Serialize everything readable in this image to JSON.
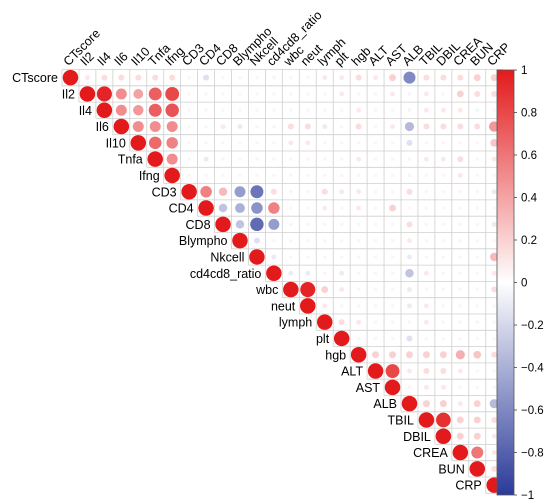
{
  "chart_data": {
    "type": "heatmap",
    "shape": "upper-triangle-circles",
    "variables": [
      "CTscore",
      "Il2",
      "Il4",
      "Il6",
      "Il10",
      "Tnfa",
      "Ifng",
      "CD3",
      "CD4",
      "CD8",
      "Blympho",
      "Nkcell",
      "cd4cd8_ratio",
      "wbc",
      "neut",
      "lymph",
      "plt",
      "hgb",
      "ALT",
      "AST",
      "ALB",
      "TBIL",
      "DBIL",
      "CREA",
      "BUN",
      "CRP"
    ],
    "correlations": {
      "CTscore": {
        "Il2": 0.1,
        "Il4": 0.15,
        "Il6": 0.15,
        "Il10": 0.15,
        "Tnfa": 0.15,
        "Ifng": 0.15,
        "CD3": 0.05,
        "CD4": -0.15,
        "CD8": 0.05,
        "Blympho": 0.05,
        "Nkcell": 0.05,
        "cd4cd8_ratio": -0.05,
        "wbc": 0.05,
        "neut": 0.05,
        "lymph": 0.1,
        "plt": 0.1,
        "hgb": 0.15,
        "ALT": 0.1,
        "AST": 0.2,
        "ALB": -0.6,
        "TBIL": 0.15,
        "DBIL": 0.15,
        "CREA": 0.15,
        "BUN": 0.2,
        "CRP": 0.2
      },
      "Il2": {
        "Il4": 0.95,
        "Il6": 0.5,
        "Il10": 0.4,
        "Tnfa": 0.7,
        "Ifng": 0.8,
        "CD3": 0.05,
        "CD4": 0.05,
        "CD8": 0.05,
        "Blympho": 0.05,
        "Nkcell": 0.05,
        "cd4cd8_ratio": 0.05,
        "wbc": 0.05,
        "neut": 0.05,
        "lymph": 0.05,
        "plt": 0.1,
        "hgb": 0.05,
        "ALT": 0.05,
        "AST": 0.1,
        "ALB": -0.05,
        "TBIL": 0.1,
        "DBIL": 0.05,
        "CREA": 0.2,
        "BUN": 0.15,
        "CRP": 0.15
      },
      "Il4": {
        "Il6": 0.5,
        "Il10": 0.45,
        "Tnfa": 0.7,
        "Ifng": 0.75,
        "CD3": 0.05,
        "CD4": 0.05,
        "CD8": 0.05,
        "Blympho": 0.05,
        "Nkcell": 0.05,
        "cd4cd8_ratio": 0.05,
        "wbc": 0.05,
        "neut": 0.05,
        "lymph": 0.05,
        "plt": 0.05,
        "hgb": 0.1,
        "ALT": 0.05,
        "AST": 0.05,
        "ALB": -0.05,
        "TBIL": 0.1,
        "DBIL": 0.1,
        "CREA": 0.1,
        "BUN": -0.05,
        "CRP": 0.05
      },
      "Il6": {
        "Il10": 0.5,
        "Tnfa": 0.5,
        "Ifng": 0.5,
        "CD3": 0.05,
        "CD4": 0.05,
        "CD8": 0.1,
        "Blympho": -0.1,
        "Nkcell": 0.05,
        "cd4cd8_ratio": -0.05,
        "wbc": 0.15,
        "neut": 0.15,
        "lymph": -0.1,
        "plt": 0.05,
        "hgb": 0.15,
        "ALT": 0.05,
        "AST": 0.1,
        "ALB": -0.35,
        "TBIL": 0.15,
        "DBIL": 0.15,
        "CREA": 0.15,
        "BUN": 0.15,
        "CRP": 0.45
      },
      "Il10": {
        "Tnfa": 0.65,
        "Ifng": 0.55,
        "CD3": 0.05,
        "CD4": 0.05,
        "CD8": 0.05,
        "Blympho": 0.05,
        "Nkcell": 0.05,
        "cd4cd8_ratio": 0.05,
        "wbc": 0.1,
        "neut": 0.1,
        "lymph": 0.05,
        "plt": 0.05,
        "hgb": 0.05,
        "ALT": 0.05,
        "AST": 0.05,
        "ALB": -0.15,
        "TBIL": 0.05,
        "DBIL": 0.05,
        "CREA": 0.05,
        "BUN": 0.05,
        "CRP": 0.25
      },
      "Tnfa": {
        "Ifng": 0.5,
        "CD3": 0.05,
        "CD4": -0.1,
        "CD8": 0.05,
        "Blympho": 0.05,
        "Nkcell": 0.05,
        "cd4cd8_ratio": 0.05,
        "wbc": 0.05,
        "neut": 0.05,
        "lymph": 0.05,
        "plt": 0.05,
        "hgb": 0.1,
        "ALT": 0.05,
        "AST": 0.05,
        "ALB": -0.05,
        "TBIL": 0.1,
        "DBIL": 0.1,
        "CREA": 0.15,
        "BUN": 0.05,
        "CRP": 0.1
      },
      "Ifng": {
        "CD3": 0.05,
        "CD4": 0.05,
        "CD8": 0.05,
        "Blympho": 0.05,
        "Nkcell": 0.05,
        "cd4cd8_ratio": 0.05,
        "wbc": 0.05,
        "neut": 0.05,
        "lymph": 0.05,
        "plt": 0.05,
        "hgb": 0.05,
        "ALT": 0.05,
        "AST": 0.05,
        "ALB": -0.05,
        "TBIL": 0.05,
        "DBIL": 0.05,
        "CREA": 0.1,
        "BUN": 0.05,
        "CRP": 0.05
      },
      "CD3": {
        "CD4": 0.55,
        "CD8": 0.3,
        "Blympho": -0.5,
        "Nkcell": -0.7,
        "cd4cd8_ratio": 0.15,
        "wbc": 0.05,
        "neut": 0.05,
        "lymph": 0.15,
        "plt": 0.1,
        "hgb": 0.1,
        "ALT": 0.05,
        "AST": 0.05,
        "ALB": 0.15,
        "TBIL": 0.05,
        "DBIL": 0.05,
        "CREA": 0.05,
        "BUN": 0.05,
        "CRP": -0.1
      },
      "CD4": {
        "CD8": -0.3,
        "Blympho": -0.4,
        "Nkcell": -0.55,
        "cd4cd8_ratio": 0.55,
        "wbc": 0.05,
        "neut": 0.05,
        "lymph": 0.1,
        "plt": 0.05,
        "hgb": 0.1,
        "ALT": 0.05,
        "AST": 0.2,
        "ALB": 0.05,
        "TBIL": 0.05,
        "DBIL": 0.05,
        "CREA": 0.05,
        "BUN": 0.05,
        "CRP": 0.05
      },
      "CD8": {
        "Blympho": -0.3,
        "Nkcell": -0.75,
        "cd4cd8_ratio": -0.5,
        "wbc": 0.05,
        "neut": 0.05,
        "lymph": 0.05,
        "plt": 0.05,
        "hgb": 0.05,
        "ALT": 0.05,
        "AST": 0.05,
        "ALB": 0.15,
        "TBIL": 0.05,
        "DBIL": 0.05,
        "CREA": 0.05,
        "BUN": 0.05,
        "CRP": -0.1
      },
      "Blympho": {
        "Nkcell": -0.15,
        "cd4cd8_ratio": 0.05,
        "wbc": 0.05,
        "neut": 0.05,
        "lymph": 0.05,
        "plt": 0.05,
        "hgb": 0.05,
        "ALT": 0.05,
        "AST": 0.05,
        "ALB": 0.1,
        "TBIL": 0.05,
        "DBIL": 0.05,
        "CREA": 0.05,
        "BUN": 0.05,
        "CRP": 0.05
      },
      "Nkcell": {
        "cd4cd8_ratio": -0.1,
        "wbc": 0.05,
        "neut": 0.05,
        "lymph": 0.05,
        "plt": 0.05,
        "hgb": 0.05,
        "ALT": 0.05,
        "AST": 0.05,
        "ALB": -0.1,
        "TBIL": 0.05,
        "DBIL": 0.05,
        "CREA": 0.05,
        "BUN": 0.05,
        "CRP": 0.3
      },
      "cd4cd8_ratio": {
        "wbc": -0.1,
        "neut": -0.1,
        "lymph": 0.05,
        "plt": -0.1,
        "hgb": 0.05,
        "ALT": 0.05,
        "AST": 0.05,
        "ALB": -0.3,
        "TBIL": 0.1,
        "DBIL": 0.05,
        "CREA": 0.05,
        "BUN": 0.05,
        "CRP": 0.1
      },
      "wbc": {
        "neut": 0.95,
        "lymph": 0.2,
        "plt": 0.1,
        "hgb": 0.05,
        "ALT": 0.05,
        "AST": 0.05,
        "ALB": -0.1,
        "TBIL": 0.05,
        "DBIL": 0.05,
        "CREA": 0.05,
        "BUN": 0.05,
        "CRP": 0.15
      },
      "neut": {
        "lymph": 0.1,
        "plt": 0.05,
        "hgb": 0.05,
        "ALT": 0.05,
        "AST": 0.05,
        "ALB": -0.1,
        "TBIL": 0.1,
        "DBIL": 0.05,
        "CREA": 0.05,
        "BUN": 0.05,
        "CRP": 0.05
      },
      "lymph": {
        "plt": 0.15,
        "hgb": 0.1,
        "ALT": 0.05,
        "AST": 0.05,
        "ALB": 0.05,
        "TBIL": 0.1,
        "DBIL": 0.05,
        "CREA": 0.05,
        "BUN": -0.05,
        "CRP": 0.05
      },
      "plt": {
        "hgb": 0.05,
        "ALT": 0.05,
        "AST": 0.05,
        "ALB": -0.15,
        "TBIL": 0.05,
        "DBIL": 0.05,
        "CREA": 0.05,
        "BUN": 0.05,
        "CRP": 0.05
      },
      "hgb": {
        "ALT": 0.2,
        "AST": 0.2,
        "ALB": 0.2,
        "TBIL": 0.2,
        "DBIL": 0.2,
        "CREA": 0.35,
        "BUN": 0.25,
        "CRP": 0.15
      },
      "ALT": {
        "AST": 0.8,
        "ALB": 0.1,
        "TBIL": 0.15,
        "DBIL": 0.15,
        "CREA": 0.1,
        "BUN": 0.05,
        "CRP": 0.05
      },
      "AST": {
        "ALB": 0.05,
        "TBIL": 0.1,
        "DBIL": 0.1,
        "CREA": 0.05,
        "BUN": 0.05,
        "CRP": 0.05
      },
      "ALB": {
        "TBIL": 0.2,
        "DBIL": 0.2,
        "CREA": 0.1,
        "BUN": 0.2,
        "CRP": -0.35
      },
      "TBIL": {
        "DBIL": 0.9,
        "CREA": 0.2,
        "BUN": 0.2,
        "CRP": 0.15
      },
      "DBIL": {
        "CREA": 0.2,
        "BUN": 0.2,
        "CRP": 0.1
      },
      "CREA": {
        "BUN": 0.6,
        "CRP": 0.1
      },
      "BUN": {
        "CRP": 0.15
      }
    },
    "colorbar": {
      "range": [
        -1,
        1
      ],
      "ticks": [
        "1",
        "0.8",
        "0.6",
        "0.4",
        "0.2",
        "0",
        "−0.2",
        "−0.4",
        "−0.6",
        "−0.8",
        "−1"
      ],
      "colors": {
        "positive": "#e31a1c",
        "neutral": "#ffffff",
        "negative": "#2b3a99"
      }
    },
    "legend_position": "right",
    "grid": true
  }
}
